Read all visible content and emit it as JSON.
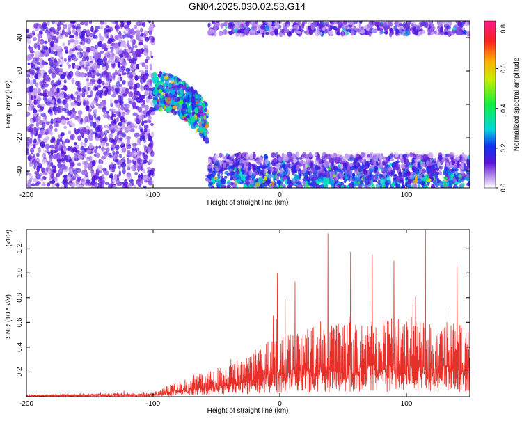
{
  "title": "GN04.2025.030.02.53.G14",
  "colors": {
    "snr_line": "#e8302a",
    "axis": "#000000"
  },
  "chart_data": [
    {
      "type": "heatmap",
      "xlabel": "Height of straight line (km)",
      "ylabel": "Frequency (Hz)",
      "xlim": [
        -200,
        150
      ],
      "ylim": [
        -50,
        50
      ],
      "x_ticks": [
        -200,
        -100,
        0,
        100
      ],
      "y_ticks": [
        -40,
        -20,
        0,
        20,
        40
      ],
      "colorbar": {
        "label": "Normalized spectral amplitude",
        "range": [
          0,
          0.84
        ],
        "ticks": [
          "0.0",
          "0.2",
          "0.4",
          "0.6",
          "0.8"
        ]
      },
      "regions": [
        {
          "x_range": [
            -200,
            -100
          ],
          "f_range": [
            -50,
            50
          ],
          "level": 0.12,
          "pattern": "scattered"
        },
        {
          "x_range": [
            -100,
            -57
          ],
          "f_range": [
            -18,
            18
          ],
          "level": 0.28,
          "pattern": "band",
          "center_start": 8,
          "center_end": -12
        },
        {
          "x_range": [
            -57,
            150
          ],
          "f_range": [
            -50,
            -30
          ],
          "level": 0.22,
          "pattern": "band-edge-low"
        },
        {
          "x_range": [
            -57,
            150
          ],
          "f_range": [
            42,
            50
          ],
          "level": 0.12,
          "pattern": "band-edge-high"
        }
      ]
    },
    {
      "type": "line",
      "xlabel": "Height of straight line (km)",
      "ylabel": "SNR (10 * v/v)",
      "y_multiplier": "(x10⁴)",
      "xlim": [
        -200,
        150
      ],
      "ylim": [
        0,
        1.35
      ],
      "x_ticks": [
        -200,
        -100,
        0,
        100
      ],
      "y_ticks": [
        "0.2",
        "0.4",
        "0.6",
        "0.8",
        "1.0",
        "1.2"
      ],
      "series": [
        {
          "profile_x": [
            -200,
            -100,
            -90,
            -80,
            -60,
            -40,
            -20,
            0,
            20,
            40,
            60,
            80,
            100,
            120,
            150
          ],
          "profile_mean": [
            0.01,
            0.02,
            0.05,
            0.08,
            0.12,
            0.15,
            0.22,
            0.3,
            0.33,
            0.35,
            0.36,
            0.37,
            0.38,
            0.37,
            0.35
          ],
          "peaks": [
            [
              38,
              1.32
            ],
            [
              115,
              1.35
            ],
            [
              -2,
              1.0
            ],
            [
              56,
              1.17
            ],
            [
              73,
              1.15
            ],
            [
              140,
              1.06
            ],
            [
              12,
              0.93
            ],
            [
              90,
              1.1
            ]
          ]
        }
      ]
    }
  ]
}
